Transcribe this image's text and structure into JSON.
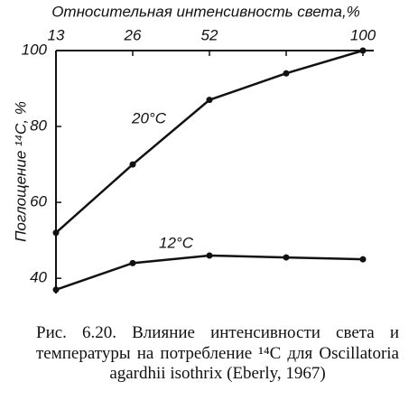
{
  "chart_data": {
    "type": "line",
    "x_label": "Относительная интенсивность света,%",
    "y_label": "Поглощение ¹⁴C, %",
    "categories": [
      "13",
      "26",
      "52",
      null,
      "100"
    ],
    "series": [
      {
        "name": "20°C",
        "color": "#111111",
        "values": [
          52,
          70,
          87,
          94,
          100
        ]
      },
      {
        "name": "12°C",
        "color": "#111111",
        "values": [
          37,
          44,
          46,
          45.5,
          45
        ]
      }
    ],
    "ylim": [
      36,
      100
    ],
    "yticks": [
      40,
      60,
      80,
      100
    ],
    "grid": false,
    "caption": "Рис. 6.20. Влияние интенсивности света и температуры на потребление ¹⁴C для Oscillatoria agardhii isothrix (Eberly, 1967)"
  }
}
